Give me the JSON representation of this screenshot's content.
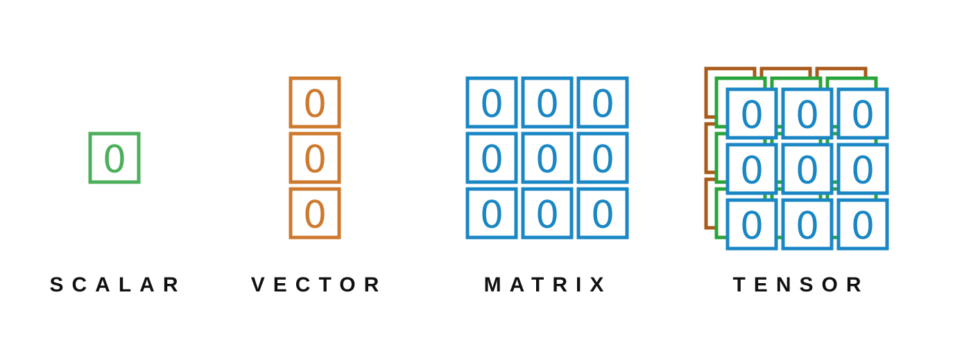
{
  "colors": {
    "scalar": "#4caf5c",
    "vector": "#cd7a2e",
    "matrix": "#1a87c4",
    "tensor_back": "#a85a1a",
    "tensor_middle": "#2aa33a",
    "tensor_front": "#1a87c4"
  },
  "diagrams": {
    "scalar": {
      "label": "SCALAR",
      "value": "0",
      "rows": 1,
      "cols": 1
    },
    "vector": {
      "label": "VECTOR",
      "value": "0",
      "rows": 3,
      "cols": 1
    },
    "matrix": {
      "label": "MATRIX",
      "value": "0",
      "rows": 3,
      "cols": 3
    },
    "tensor": {
      "label": "TENSOR",
      "value": "0",
      "rows": 3,
      "cols": 3,
      "depth": 3
    }
  }
}
